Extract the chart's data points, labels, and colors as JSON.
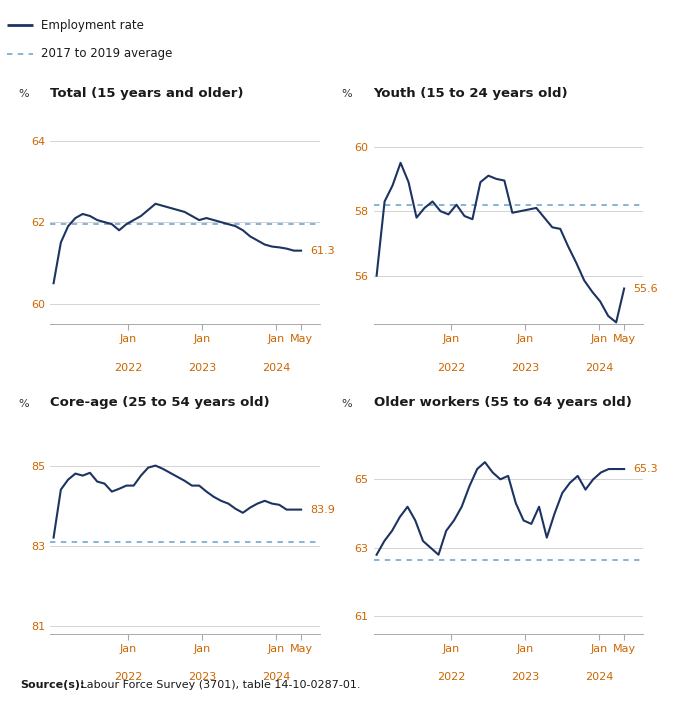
{
  "legend": {
    "employment_rate_label": "Employment rate",
    "average_label": "2017 to 2019 average",
    "line_color": "#1c3461",
    "avg_color": "#7bafd4"
  },
  "panels": [
    {
      "title": "Total (15 years and older)",
      "ylim": [
        59.5,
        64.8
      ],
      "yticks": [
        60,
        62,
        64
      ],
      "avg_line": 61.95,
      "last_value": "61.3",
      "data": [
        60.5,
        61.5,
        61.9,
        62.1,
        62.2,
        62.15,
        62.05,
        62.0,
        61.95,
        61.8,
        61.95,
        62.05,
        62.15,
        62.3,
        62.45,
        62.4,
        62.35,
        62.3,
        62.25,
        62.15,
        62.05,
        62.1,
        62.05,
        62.0,
        61.95,
        61.9,
        61.8,
        61.65,
        61.55,
        61.45,
        61.4,
        61.38,
        61.35,
        61.3,
        61.3
      ]
    },
    {
      "title": "Youth (15 to 24 years old)",
      "ylim": [
        54.5,
        61.2
      ],
      "yticks": [
        56,
        58,
        60
      ],
      "avg_line": 58.2,
      "last_value": "55.6",
      "data": [
        56.0,
        58.3,
        58.8,
        59.5,
        58.9,
        57.8,
        58.1,
        58.3,
        58.0,
        57.9,
        58.2,
        57.85,
        57.75,
        58.9,
        59.1,
        59.0,
        58.95,
        57.95,
        58.0,
        58.05,
        58.1,
        57.8,
        57.5,
        57.45,
        56.9,
        56.4,
        55.85,
        55.5,
        55.2,
        54.75,
        54.55,
        55.6
      ]
    },
    {
      "title": "Core-age (25 to 54 years old)",
      "ylim": [
        80.8,
        86.2
      ],
      "yticks": [
        81,
        83,
        85
      ],
      "avg_line": 83.1,
      "last_value": "83.9",
      "data": [
        83.2,
        84.4,
        84.65,
        84.8,
        84.75,
        84.82,
        84.6,
        84.55,
        84.35,
        84.42,
        84.5,
        84.5,
        84.75,
        84.95,
        85.0,
        84.92,
        84.82,
        84.72,
        84.62,
        84.5,
        84.5,
        84.35,
        84.22,
        84.12,
        84.05,
        83.92,
        83.82,
        83.95,
        84.05,
        84.12,
        84.05,
        84.02,
        83.9,
        83.9,
        83.9
      ]
    },
    {
      "title": "Older workers (55 to 64 years old)",
      "ylim": [
        60.5,
        66.8
      ],
      "yticks": [
        61,
        63,
        65
      ],
      "avg_line": 62.65,
      "last_value": "65.3",
      "data": [
        62.8,
        63.2,
        63.5,
        63.9,
        64.2,
        63.8,
        63.2,
        63.0,
        62.8,
        63.5,
        63.8,
        64.2,
        64.8,
        65.3,
        65.5,
        65.2,
        65.0,
        65.1,
        64.3,
        63.8,
        63.7,
        64.2,
        63.3,
        64.0,
        64.6,
        64.9,
        65.1,
        64.7,
        65.0,
        65.2,
        65.3,
        65.3,
        65.3
      ]
    }
  ],
  "source_bold": "Source(s):",
  "source_rest": " Labour Force Survey (3701), table 14-10-0287-01.",
  "line_color": "#1c3461",
  "avg_color": "#7bafd4",
  "grid_color": "#cccccc",
  "tick_label_color": "#cc6600",
  "background_color": "#ffffff",
  "xtick_pos": [
    12,
    24,
    36,
    40
  ],
  "xtick_labels_main": [
    "Jan",
    "Jan",
    "Jan",
    "May"
  ],
  "xtick_year_1": "2022",
  "xtick_year_2": "2023",
  "xtick_year_3": "2024"
}
